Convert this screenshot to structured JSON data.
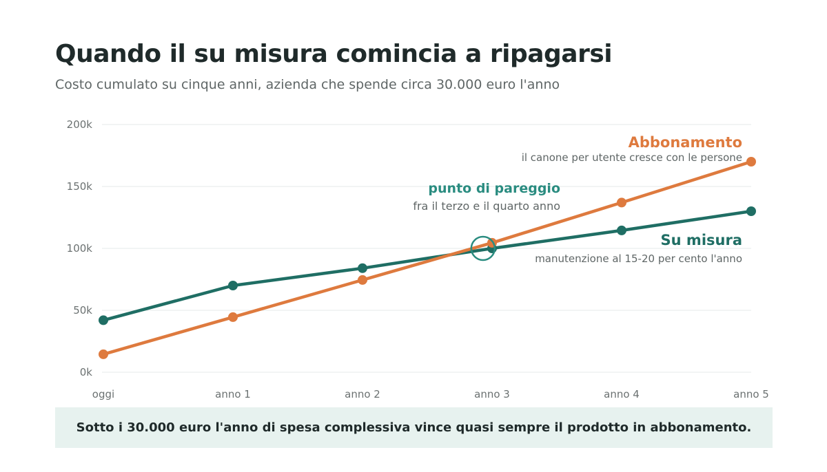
{
  "title": "Quando il su misura comincia a ripagarsi",
  "subtitle": "Costo cumulato su cinque anni, azienda che spende circa 30.000 euro l'anno",
  "colors": {
    "abbonamento": "#de7a3e",
    "su_misura": "#1f6e64",
    "pareggio": "#2a8c80",
    "grid": "#e6e9e9",
    "footer_bg": "#e7f2ef"
  },
  "chart_data": {
    "type": "line",
    "x": [
      "oggi",
      "anno 1",
      "anno 2",
      "anno 3",
      "anno 4",
      "anno 5"
    ],
    "ylim": [
      0,
      200000
    ],
    "y_ticks": [
      {
        "value": 0,
        "label": "0k"
      },
      {
        "value": 50000,
        "label": "50k"
      },
      {
        "value": 100000,
        "label": "100k"
      },
      {
        "value": 150000,
        "label": "150k"
      },
      {
        "value": 200000,
        "label": "200k"
      }
    ],
    "grid": true,
    "series": [
      {
        "key": "abbonamento",
        "name": "Abbonamento",
        "note": "il canone per utente cresce con le persone",
        "values": [
          14500,
          44500,
          74500,
          104500,
          137000,
          170000
        ]
      },
      {
        "key": "su_misura",
        "name": "Su misura",
        "note": "manutenzione al 15-20 per cento l'anno",
        "values": [
          42000,
          70000,
          84000,
          100000,
          114500,
          130000
        ]
      }
    ],
    "annotation": {
      "label": "punto di pareggio",
      "note": "fra il terzo e il quarto anno",
      "x": 2.93,
      "y": 100000
    }
  },
  "footer": "Sotto i 30.000 euro l'anno di spesa complessiva vince quasi sempre il prodotto in abbonamento."
}
